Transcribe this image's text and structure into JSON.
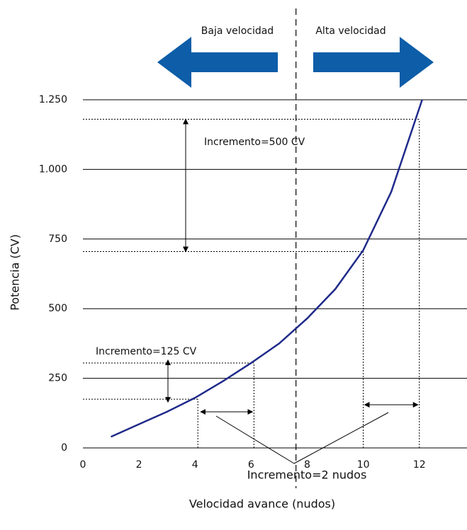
{
  "chart_data": {
    "type": "line",
    "x_label": "Velocidad avance (nudos)",
    "y_label": "Potencia (CV)",
    "x": [
      1,
      2,
      3,
      4,
      5,
      6,
      7,
      8,
      9,
      10,
      11,
      12.1
    ],
    "series": [
      {
        "color": "#1f2a8a",
        "values": [
          40,
          85,
          130,
          180,
          240,
          305,
          375,
          465,
          570,
          710,
          920,
          1250
        ]
      }
    ],
    "xlim": [
      0,
      13.7
    ],
    "ylim": [
      0,
      1250
    ],
    "xticks": [
      0,
      2,
      4,
      6,
      8,
      10,
      12
    ],
    "yticks": [
      0,
      250,
      500,
      750,
      {
        "value": 1000,
        "label": "1.000"
      },
      {
        "value": 1250,
        "label": "1.250"
      }
    ],
    "grid": true,
    "divider_x": 7.6,
    "reference_points": {
      "x": [
        4.1,
        6.1,
        10,
        12
      ],
      "y": [
        175,
        305,
        705,
        1180
      ]
    },
    "annotations": {
      "low": "Baja velocidad",
      "high": "Alta velocidad",
      "inc_power_high": "Incremento=500 CV",
      "inc_power_low": "Incremento=125 CV",
      "inc_speed": "Incremento=2 nudos"
    }
  }
}
